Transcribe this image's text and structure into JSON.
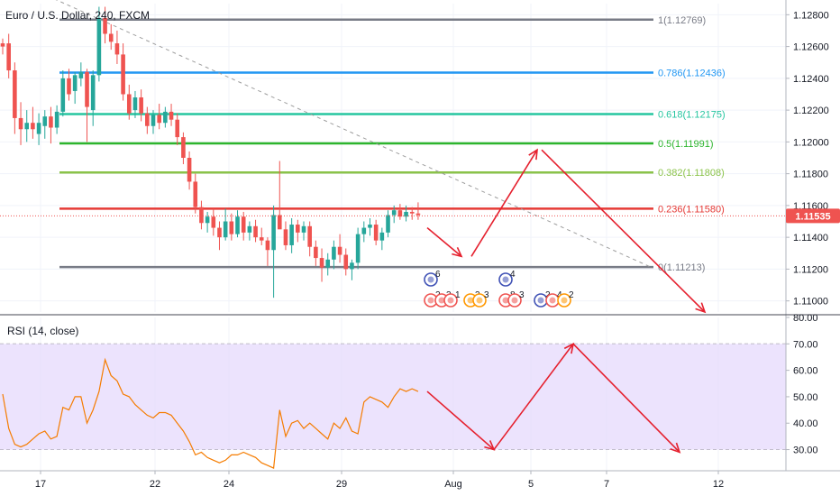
{
  "header": {
    "symbol_title": "Euro / U.S. Dollar, 240, FXCM"
  },
  "rsi_panel": {
    "title": "RSI (14, close)"
  },
  "price_axis": {
    "ticks": [
      "1.12800",
      "1.12600",
      "1.12400",
      "1.12200",
      "1.12000",
      "1.11800",
      "1.11600",
      "1.11400",
      "1.11200",
      "1.11000"
    ]
  },
  "rsi_axis": {
    "ticks": [
      "80.00",
      "70.00",
      "60.00",
      "50.00",
      "40.00",
      "30.00"
    ]
  },
  "time_axis": {
    "ticks": [
      "17",
      "22",
      "24",
      "29",
      "Aug",
      "5",
      "7",
      "12"
    ]
  },
  "current_price": {
    "label": "1.11535",
    "color": "#ef5350"
  },
  "colors": {
    "bull": "#26a69a",
    "bear": "#ef5350",
    "rsi_line": "#f57c00",
    "rsi_band": "#e5d9fc",
    "arrow": "#e5202e",
    "trendline": "#9e9e9e"
  },
  "chart_data": [
    {
      "type": "candlestick",
      "title": "Euro / U.S. Dollar, 240, FXCM",
      "ylim": [
        1.1093,
        1.1287
      ],
      "x_ticks": [
        "17",
        "22",
        "24",
        "29",
        "Aug",
        "5",
        "7",
        "12"
      ],
      "fib_levels": [
        {
          "label": "1(1.12769)",
          "value": 1.12769,
          "color": "#787b86"
        },
        {
          "label": "0.786(1.12436)",
          "value": 1.12436,
          "color": "#2196f3"
        },
        {
          "label": "0.618(1.12175)",
          "value": 1.12175,
          "color": "#26c6a0"
        },
        {
          "label": "0.5(1.11991)",
          "value": 1.11991,
          "color": "#2db52d"
        },
        {
          "label": "0.382(1.11808)",
          "value": 1.11808,
          "color": "#8bc34a"
        },
        {
          "label": "0.236(1.11580)",
          "value": 1.1158,
          "color": "#e53935"
        },
        {
          "label": "0(1.11213)",
          "value": 1.11213,
          "color": "#787b86"
        }
      ],
      "current_price": 1.11535,
      "candles": [
        {
          "o": 1.1262,
          "h": 1.1265,
          "l": 1.1255,
          "c": 1.126
        },
        {
          "o": 1.1262,
          "h": 1.1268,
          "l": 1.124,
          "c": 1.1245
        },
        {
          "o": 1.1245,
          "h": 1.125,
          "l": 1.1205,
          "c": 1.1215
        },
        {
          "o": 1.1215,
          "h": 1.1225,
          "l": 1.1198,
          "c": 1.1208
        },
        {
          "o": 1.1208,
          "h": 1.122,
          "l": 1.12,
          "c": 1.1212
        },
        {
          "o": 1.1212,
          "h": 1.1222,
          "l": 1.1202,
          "c": 1.1208
        },
        {
          "o": 1.1205,
          "h": 1.1218,
          "l": 1.1198,
          "c": 1.1212
        },
        {
          "o": 1.121,
          "h": 1.122,
          "l": 1.1202,
          "c": 1.1216
        },
        {
          "o": 1.1216,
          "h": 1.1222,
          "l": 1.1199,
          "c": 1.1209
        },
        {
          "o": 1.1209,
          "h": 1.1223,
          "l": 1.1205,
          "c": 1.1219
        },
        {
          "o": 1.1219,
          "h": 1.1245,
          "l": 1.1216,
          "c": 1.124
        },
        {
          "o": 1.124,
          "h": 1.1246,
          "l": 1.1226,
          "c": 1.123
        },
        {
          "o": 1.1232,
          "h": 1.1244,
          "l": 1.1224,
          "c": 1.1242
        },
        {
          "o": 1.124,
          "h": 1.125,
          "l": 1.1235,
          "c": 1.1244
        },
        {
          "o": 1.1244,
          "h": 1.1246,
          "l": 1.12,
          "c": 1.1222
        },
        {
          "o": 1.122,
          "h": 1.1245,
          "l": 1.121,
          "c": 1.1242
        },
        {
          "o": 1.1242,
          "h": 1.1285,
          "l": 1.1238,
          "c": 1.1278
        },
        {
          "o": 1.1278,
          "h": 1.1285,
          "l": 1.1262,
          "c": 1.1268
        },
        {
          "o": 1.1268,
          "h": 1.1274,
          "l": 1.1258,
          "c": 1.1263
        },
        {
          "o": 1.1262,
          "h": 1.127,
          "l": 1.1249,
          "c": 1.1255
        },
        {
          "o": 1.1255,
          "h": 1.1262,
          "l": 1.1226,
          "c": 1.123
        },
        {
          "o": 1.123,
          "h": 1.1236,
          "l": 1.1214,
          "c": 1.1218
        },
        {
          "o": 1.122,
          "h": 1.1232,
          "l": 1.1215,
          "c": 1.1228
        },
        {
          "o": 1.1228,
          "h": 1.1233,
          "l": 1.1213,
          "c": 1.1218
        },
        {
          "o": 1.1218,
          "h": 1.1222,
          "l": 1.1205,
          "c": 1.121
        },
        {
          "o": 1.121,
          "h": 1.122,
          "l": 1.1205,
          "c": 1.1217
        },
        {
          "o": 1.1217,
          "h": 1.1224,
          "l": 1.1208,
          "c": 1.1212
        },
        {
          "o": 1.1212,
          "h": 1.1222,
          "l": 1.1209,
          "c": 1.1219
        },
        {
          "o": 1.1219,
          "h": 1.1224,
          "l": 1.121,
          "c": 1.1214
        },
        {
          "o": 1.1214,
          "h": 1.1218,
          "l": 1.1198,
          "c": 1.1203
        },
        {
          "o": 1.1203,
          "h": 1.1206,
          "l": 1.1186,
          "c": 1.119
        },
        {
          "o": 1.119,
          "h": 1.1194,
          "l": 1.117,
          "c": 1.1175
        },
        {
          "o": 1.1175,
          "h": 1.118,
          "l": 1.1155,
          "c": 1.1159
        },
        {
          "o": 1.1159,
          "h": 1.1163,
          "l": 1.1145,
          "c": 1.1149
        },
        {
          "o": 1.1149,
          "h": 1.1156,
          "l": 1.1143,
          "c": 1.1153
        },
        {
          "o": 1.1153,
          "h": 1.1158,
          "l": 1.1141,
          "c": 1.1146
        },
        {
          "o": 1.1146,
          "h": 1.115,
          "l": 1.1132,
          "c": 1.114
        },
        {
          "o": 1.114,
          "h": 1.1158,
          "l": 1.1138,
          "c": 1.115
        },
        {
          "o": 1.115,
          "h": 1.1155,
          "l": 1.1138,
          "c": 1.1142
        },
        {
          "o": 1.1142,
          "h": 1.1157,
          "l": 1.114,
          "c": 1.1153
        },
        {
          "o": 1.1153,
          "h": 1.1156,
          "l": 1.1138,
          "c": 1.1143
        },
        {
          "o": 1.1143,
          "h": 1.115,
          "l": 1.1138,
          "c": 1.1147
        },
        {
          "o": 1.1147,
          "h": 1.1151,
          "l": 1.1137,
          "c": 1.114
        },
        {
          "o": 1.114,
          "h": 1.1146,
          "l": 1.1135,
          "c": 1.1138
        },
        {
          "o": 1.1138,
          "h": 1.114,
          "l": 1.1122,
          "c": 1.1132
        },
        {
          "o": 1.1132,
          "h": 1.116,
          "l": 1.1102,
          "c": 1.1154
        },
        {
          "o": 1.1154,
          "h": 1.1188,
          "l": 1.1146,
          "c": 1.1145
        },
        {
          "o": 1.1145,
          "h": 1.115,
          "l": 1.1132,
          "c": 1.1135
        },
        {
          "o": 1.1135,
          "h": 1.1152,
          "l": 1.113,
          "c": 1.1148
        },
        {
          "o": 1.1148,
          "h": 1.1151,
          "l": 1.1137,
          "c": 1.1143
        },
        {
          "o": 1.1143,
          "h": 1.115,
          "l": 1.1138,
          "c": 1.1147
        },
        {
          "o": 1.1147,
          "h": 1.115,
          "l": 1.1128,
          "c": 1.1134
        },
        {
          "o": 1.1134,
          "h": 1.1138,
          "l": 1.1122,
          "c": 1.1127
        },
        {
          "o": 1.1127,
          "h": 1.1133,
          "l": 1.1112,
          "c": 1.1121
        },
        {
          "o": 1.1121,
          "h": 1.113,
          "l": 1.1116,
          "c": 1.1126
        },
        {
          "o": 1.1126,
          "h": 1.1138,
          "l": 1.112,
          "c": 1.1134
        },
        {
          "o": 1.1134,
          "h": 1.1142,
          "l": 1.1124,
          "c": 1.1129
        },
        {
          "o": 1.1129,
          "h": 1.1133,
          "l": 1.1116,
          "c": 1.112
        },
        {
          "o": 1.112,
          "h": 1.1126,
          "l": 1.1113,
          "c": 1.1124
        },
        {
          "o": 1.1124,
          "h": 1.1146,
          "l": 1.112,
          "c": 1.1142
        },
        {
          "o": 1.1142,
          "h": 1.115,
          "l": 1.1137,
          "c": 1.1146
        },
        {
          "o": 1.1146,
          "h": 1.1152,
          "l": 1.1141,
          "c": 1.1148
        },
        {
          "o": 1.1148,
          "h": 1.1151,
          "l": 1.1135,
          "c": 1.1138
        },
        {
          "o": 1.1138,
          "h": 1.1146,
          "l": 1.1132,
          "c": 1.1143
        },
        {
          "o": 1.1143,
          "h": 1.1157,
          "l": 1.114,
          "c": 1.1154
        },
        {
          "o": 1.1154,
          "h": 1.116,
          "l": 1.1149,
          "c": 1.1157
        },
        {
          "o": 1.1157,
          "h": 1.1161,
          "l": 1.1151,
          "c": 1.1153
        },
        {
          "o": 1.1153,
          "h": 1.116,
          "l": 1.115,
          "c": 1.1156
        },
        {
          "o": 1.1156,
          "h": 1.1159,
          "l": 1.1151,
          "c": 1.1155
        },
        {
          "o": 1.1155,
          "h": 1.1162,
          "l": 1.1151,
          "c": 1.1154
        }
      ],
      "forecast_path": [
        [
          1.1146,
          1.1128
        ],
        [
          1.1128,
          1.1195
        ],
        [
          1.1195,
          1.1093
        ]
      ],
      "event_markers": [
        "6",
        "2",
        "3",
        "1",
        "3",
        "3",
        "4",
        "8",
        "3",
        "2",
        "4",
        "2"
      ]
    },
    {
      "type": "line",
      "title": "RSI (14, close)",
      "ylim": [
        22,
        80
      ],
      "band": [
        30,
        70
      ],
      "series": [
        {
          "values": [
            51,
            38,
            32,
            31,
            32,
            34,
            36,
            37,
            34,
            35,
            46,
            45,
            50,
            50,
            40,
            45,
            52,
            64,
            58,
            56,
            51,
            50,
            47,
            45,
            43,
            42,
            44,
            44,
            43,
            40,
            37,
            33,
            28,
            29,
            27,
            26,
            25,
            26,
            28,
            28,
            29,
            28,
            27,
            25,
            24,
            23,
            45,
            35,
            40,
            41,
            38,
            40,
            38,
            36,
            34,
            40,
            38,
            42,
            37,
            36,
            48,
            50,
            49,
            48,
            46,
            50,
            53,
            52,
            53,
            52
          ]
        }
      ],
      "forecast_path": [
        [
          52,
          30
        ],
        [
          30,
          70
        ],
        [
          70,
          29
        ]
      ]
    }
  ]
}
